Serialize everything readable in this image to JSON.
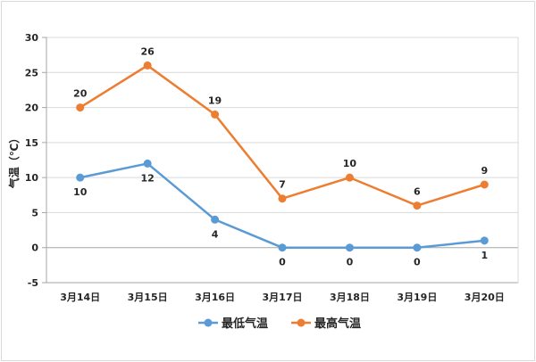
{
  "chart_data": {
    "type": "line",
    "title": "",
    "xlabel": "",
    "ylabel": "气温（℃）",
    "ylim": [
      -5,
      30
    ],
    "yticks": [
      -5,
      0,
      5,
      10,
      15,
      20,
      25,
      30
    ],
    "grid": true,
    "legend_position": "bottom",
    "categories": [
      "3月14日",
      "3月15日",
      "3月16日",
      "3月17日",
      "3月18日",
      "3月19日",
      "3月20日"
    ],
    "series": [
      {
        "name": "最低气温",
        "color": "#5b9bd5",
        "values": [
          10,
          12,
          4,
          0,
          0,
          0,
          1
        ],
        "label_position": "below"
      },
      {
        "name": "最高气温",
        "color": "#ed7d31",
        "values": [
          20,
          26,
          19,
          7,
          10,
          6,
          9
        ],
        "label_position": "above"
      }
    ]
  }
}
